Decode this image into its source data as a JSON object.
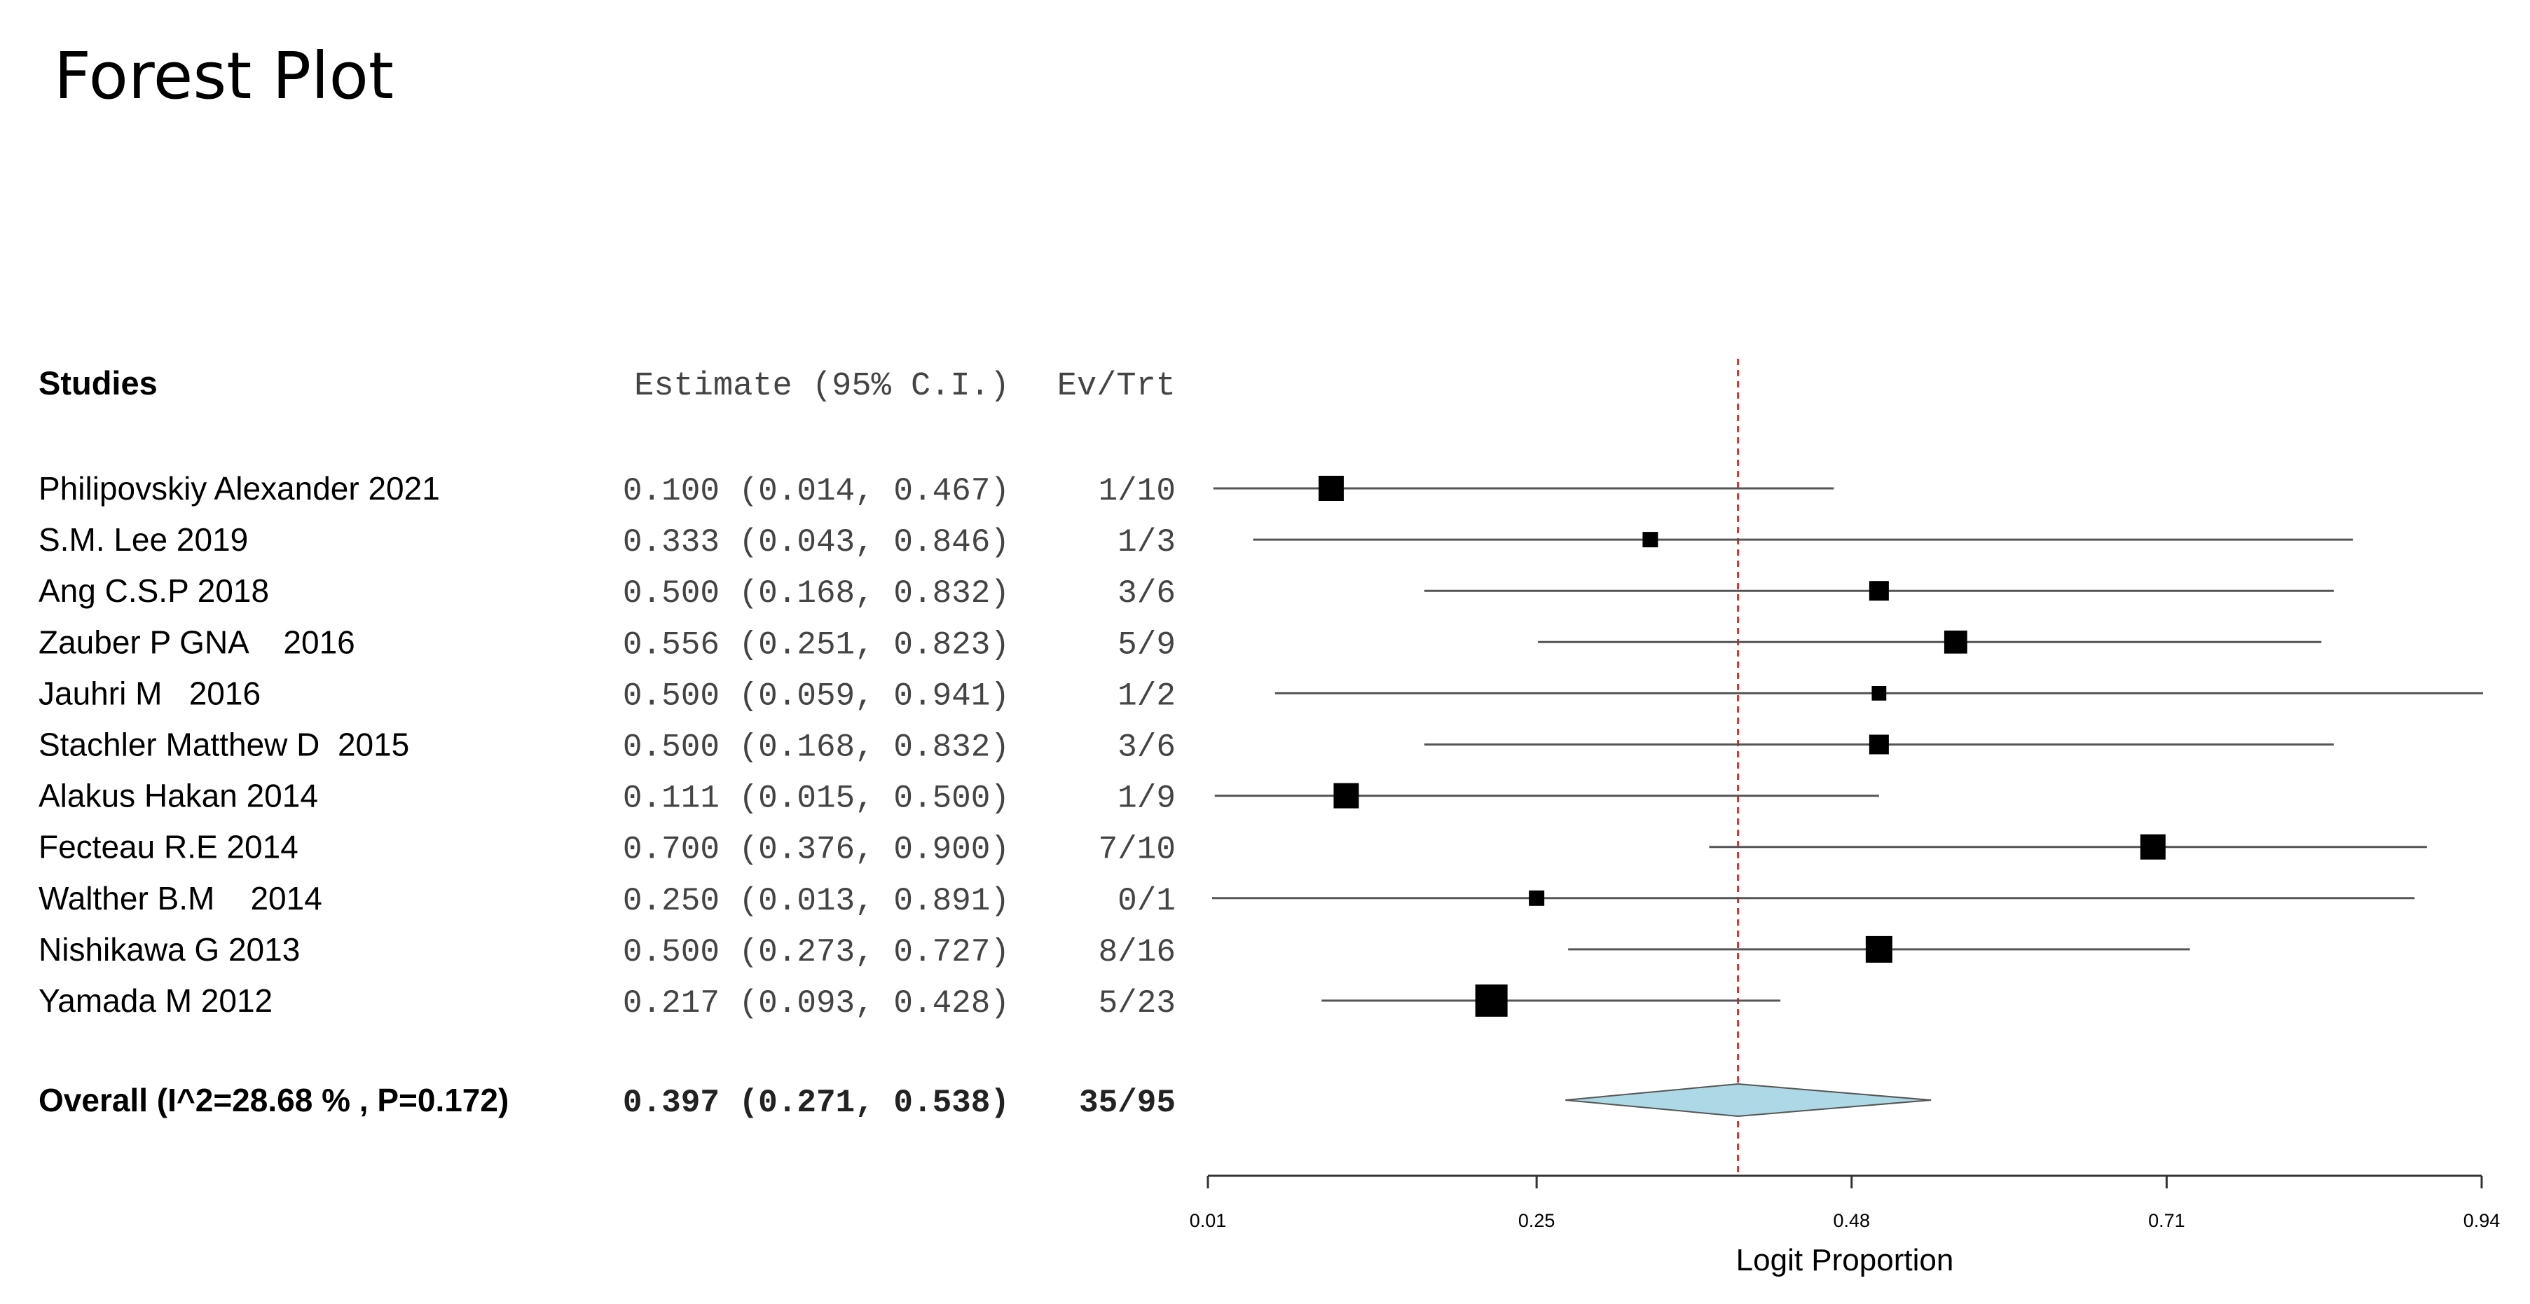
{
  "chart_data": {
    "type": "forest",
    "title": "Forest Plot",
    "headers": {
      "studies": "Studies",
      "estimate": "Estimate (95% C.I.)",
      "events": "Ev/Trt"
    },
    "studies": [
      {
        "name": "Philipovskiy Alexander 2021",
        "estimate": 0.1,
        "lower": 0.014,
        "upper": 0.467,
        "estimate_text": "0.100 (0.014, 0.467)",
        "events_text": "1/10",
        "weight": 0.9
      },
      {
        "name": "S.M. Lee 2019",
        "estimate": 0.333,
        "lower": 0.043,
        "upper": 0.846,
        "estimate_text": "0.333 (0.043, 0.846)",
        "events_text": "1/3",
        "weight": 0.55
      },
      {
        "name": "Ang C.S.P 2018",
        "estimate": 0.5,
        "lower": 0.168,
        "upper": 0.832,
        "estimate_text": "0.500 (0.168, 0.832)",
        "events_text": "3/6",
        "weight": 0.7
      },
      {
        "name": "Zauber P GNA    2016",
        "estimate": 0.556,
        "lower": 0.251,
        "upper": 0.823,
        "estimate_text": "0.556 (0.251, 0.823)",
        "events_text": "5/9",
        "weight": 0.82
      },
      {
        "name": "Jauhri M   2016",
        "estimate": 0.5,
        "lower": 0.059,
        "upper": 0.941,
        "estimate_text": "0.500 (0.059, 0.941)",
        "events_text": "1/2",
        "weight": 0.52
      },
      {
        "name": "Stachler Matthew D  2015",
        "estimate": 0.5,
        "lower": 0.168,
        "upper": 0.832,
        "estimate_text": "0.500 (0.168, 0.832)",
        "events_text": "3/6",
        "weight": 0.7
      },
      {
        "name": "Alakus Hakan 2014",
        "estimate": 0.111,
        "lower": 0.015,
        "upper": 0.5,
        "estimate_text": "0.111 (0.015, 0.500)",
        "events_text": "1/9",
        "weight": 0.9
      },
      {
        "name": "Fecteau R.E 2014",
        "estimate": 0.7,
        "lower": 0.376,
        "upper": 0.9,
        "estimate_text": "0.700 (0.376, 0.900)",
        "events_text": "7/10",
        "weight": 0.9
      },
      {
        "name": "Walther B.M    2014",
        "estimate": 0.25,
        "lower": 0.013,
        "upper": 0.891,
        "estimate_text": "0.250 (0.013, 0.891)",
        "events_text": "0/1",
        "weight": 0.55
      },
      {
        "name": "Nishikawa G 2013",
        "estimate": 0.5,
        "lower": 0.273,
        "upper": 0.727,
        "estimate_text": "0.500 (0.273, 0.727)",
        "events_text": "8/16",
        "weight": 0.95
      },
      {
        "name": "Yamada M 2012",
        "estimate": 0.217,
        "lower": 0.093,
        "upper": 0.428,
        "estimate_text": "0.217 (0.093, 0.428)",
        "events_text": "5/23",
        "weight": 1.15
      }
    ],
    "overall": {
      "label": "Overall (I^2=28.68 % , P=0.172)",
      "estimate": 0.397,
      "lower": 0.271,
      "upper": 0.538,
      "estimate_text": "0.397 (0.271, 0.538)",
      "events_text": "35/95"
    },
    "reference_line": 0.397,
    "xaxis": {
      "label": "Logit Proportion",
      "range": [
        0.01,
        0.94
      ],
      "ticks": [
        {
          "value": 0.01,
          "label": "0.01"
        },
        {
          "value": 0.25,
          "label": "0.25"
        },
        {
          "value": 0.48,
          "label": "0.48"
        },
        {
          "value": 0.71,
          "label": "0.71"
        },
        {
          "value": 0.94,
          "label": "0.94"
        }
      ]
    },
    "colors": {
      "marker": "#000000",
      "ci_line": "#555555",
      "diamond_fill": "#add8e6",
      "reference_line": "#e8302a"
    }
  }
}
